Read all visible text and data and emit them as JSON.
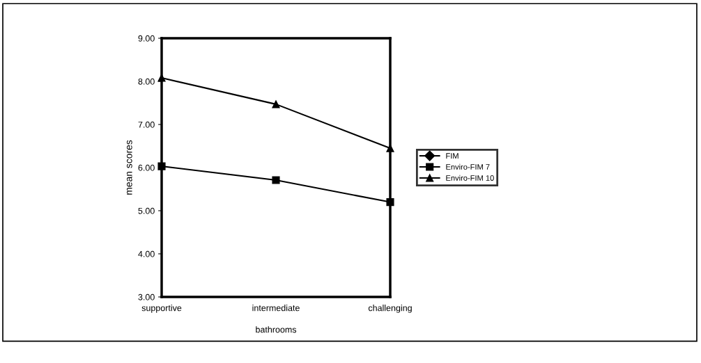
{
  "chart_data": {
    "type": "line",
    "xlabel": "bathrooms",
    "ylabel": "mean scores",
    "categories": [
      "supportive",
      "intermediate",
      "challenging"
    ],
    "series": [
      {
        "name": "FIM",
        "color": "#000000",
        "marker": "diamond",
        "values": [
          null,
          null,
          null
        ]
      },
      {
        "name": "Enviro-FIM 7",
        "color": "#000000",
        "marker": "square",
        "values": [
          6.03,
          5.71,
          5.2
        ]
      },
      {
        "name": "Enviro-FIM 10",
        "color": "#000000",
        "marker": "triangle",
        "values": [
          8.08,
          7.47,
          6.45
        ]
      }
    ],
    "ylim": [
      3,
      9
    ],
    "yticks": [
      {
        "value": 3,
        "label": "3.00"
      },
      {
        "value": 4,
        "label": "4.00"
      },
      {
        "value": 5,
        "label": "5.00"
      },
      {
        "value": 6,
        "label": "6.00"
      },
      {
        "value": 7,
        "label": "7.00"
      },
      {
        "value": 8,
        "label": "8.00"
      },
      {
        "value": 9,
        "label": "9.00"
      }
    ],
    "grid": false,
    "legend": "right",
    "line_style": "solid"
  }
}
